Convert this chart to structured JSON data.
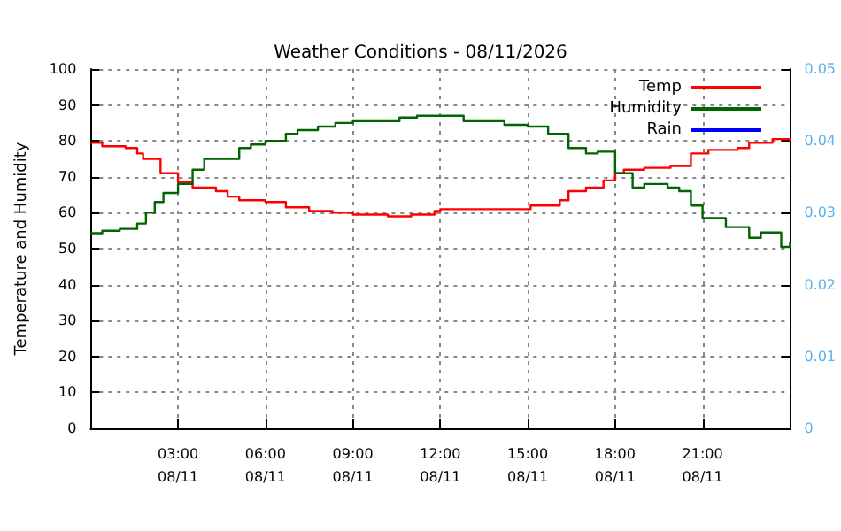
{
  "chart_data": {
    "type": "step",
    "title": "Weather Conditions - 08/11/2026",
    "ylabel": "Temperature and Humidity",
    "xlim": [
      "2026-08-11T00:00",
      "2026-08-12T00:00"
    ],
    "xticks": [
      {
        "value": "2026-08-11T03:00",
        "label": "03:00\n08/11"
      },
      {
        "value": "2026-08-11T06:00",
        "label": "06:00\n08/11"
      },
      {
        "value": "2026-08-11T09:00",
        "label": "09:00\n08/11"
      },
      {
        "value": "2026-08-11T12:00",
        "label": "12:00\n08/11"
      },
      {
        "value": "2026-08-11T15:00",
        "label": "15:00\n08/11"
      },
      {
        "value": "2026-08-11T18:00",
        "label": "18:00\n08/11"
      },
      {
        "value": "2026-08-11T21:00",
        "label": "21:00\n08/11"
      }
    ],
    "ylim": [
      0,
      100
    ],
    "yticks": [
      0,
      10,
      20,
      30,
      40,
      50,
      60,
      70,
      80,
      90,
      100
    ],
    "y2lim": [
      0,
      0.05
    ],
    "y2ticks": [
      0,
      0.01,
      0.02,
      0.03,
      0.04,
      0.05
    ],
    "grid": true,
    "legend": "top right",
    "marker": "none",
    "series": [
      {
        "name": "Temp",
        "color": "#ff0000",
        "x": [
          "2026-08-11T00:00",
          "2026-08-11T00:24",
          "2026-08-11T01:12",
          "2026-08-11T01:36",
          "2026-08-11T01:48",
          "2026-08-11T02:24",
          "2026-08-11T03:00",
          "2026-08-11T03:30",
          "2026-08-11T04:18",
          "2026-08-11T04:42",
          "2026-08-11T05:06",
          "2026-08-11T06:00",
          "2026-08-11T06:42",
          "2026-08-11T07:30",
          "2026-08-11T08:18",
          "2026-08-11T09:00",
          "2026-08-11T10:12",
          "2026-08-11T11:00",
          "2026-08-11T11:48",
          "2026-08-11T12:00",
          "2026-08-11T13:06",
          "2026-08-11T14:06",
          "2026-08-11T15:06",
          "2026-08-11T16:06",
          "2026-08-11T16:24",
          "2026-08-11T17:00",
          "2026-08-11T17:36",
          "2026-08-11T18:00",
          "2026-08-11T18:18",
          "2026-08-11T19:00",
          "2026-08-11T19:54",
          "2026-08-11T20:36",
          "2026-08-11T21:12",
          "2026-08-11T22:12",
          "2026-08-11T22:36",
          "2026-08-11T23:24",
          "2026-08-12T00:00"
        ],
        "values": [
          79.5,
          78.5,
          78,
          76.5,
          75,
          71,
          68.5,
          67,
          66,
          64.5,
          63.5,
          63,
          61.5,
          60.5,
          60,
          59.5,
          59,
          59.5,
          60.5,
          61,
          61,
          61,
          62,
          63.5,
          66,
          67,
          69,
          71,
          72,
          72.5,
          73,
          76.5,
          77.5,
          78,
          79.5,
          80.5,
          80
        ]
      },
      {
        "name": "Humidity",
        "color": "#006400",
        "x": [
          "2026-08-11T00:00",
          "2026-08-11T00:24",
          "2026-08-11T01:00",
          "2026-08-11T01:36",
          "2026-08-11T01:54",
          "2026-08-11T02:12",
          "2026-08-11T02:30",
          "2026-08-11T03:00",
          "2026-08-11T03:30",
          "2026-08-11T03:54",
          "2026-08-11T04:42",
          "2026-08-11T05:06",
          "2026-08-11T05:30",
          "2026-08-11T06:00",
          "2026-08-11T06:42",
          "2026-08-11T07:06",
          "2026-08-11T07:48",
          "2026-08-11T08:24",
          "2026-08-11T09:00",
          "2026-08-11T09:36",
          "2026-08-11T10:36",
          "2026-08-11T11:12",
          "2026-08-11T12:00",
          "2026-08-11T12:48",
          "2026-08-11T14:12",
          "2026-08-11T15:00",
          "2026-08-11T15:42",
          "2026-08-11T16:24",
          "2026-08-11T17:00",
          "2026-08-11T17:24",
          "2026-08-11T18:00",
          "2026-08-11T18:36",
          "2026-08-11T19:00",
          "2026-08-11T19:48",
          "2026-08-11T20:12",
          "2026-08-11T20:36",
          "2026-08-11T21:00",
          "2026-08-11T21:48",
          "2026-08-11T22:36",
          "2026-08-11T23:00",
          "2026-08-11T23:24",
          "2026-08-11T23:42",
          "2026-08-12T00:00"
        ],
        "values": [
          54.3,
          55,
          55.5,
          57,
          60,
          63,
          65.5,
          68,
          72,
          75,
          75,
          78,
          79,
          80,
          82,
          83,
          84,
          85,
          85.5,
          85.5,
          86.5,
          87,
          87,
          85.5,
          84.5,
          84,
          82,
          78,
          76.5,
          77,
          71,
          67,
          68,
          67,
          66,
          62,
          58.5,
          56,
          53,
          54.5,
          54.5,
          50.5,
          52
        ]
      },
      {
        "name": "Rain",
        "color": "#0000ff"
      }
    ]
  }
}
